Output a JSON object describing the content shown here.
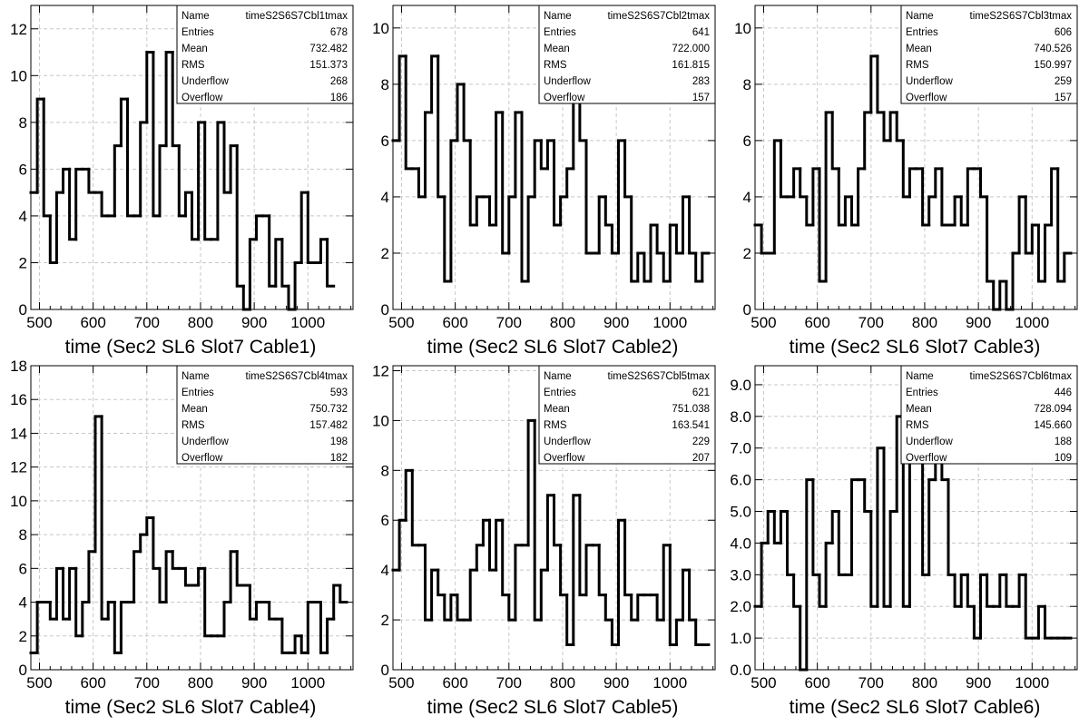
{
  "chart_data": [
    {
      "type": "bar",
      "title": "",
      "xlabel": "time (Sec2 SL6 Slot7 Cable1)",
      "ylabel": "",
      "xlim": [
        484,
        1084
      ],
      "ylim": [
        0,
        13
      ],
      "xticks": [
        500,
        600,
        700,
        800,
        900,
        1000
      ],
      "yticks": [
        0,
        2,
        4,
        6,
        8,
        10,
        12
      ],
      "ytick_format": "int",
      "grid": true,
      "bin_width": 12,
      "values": [
        5,
        9,
        4,
        2,
        5,
        6,
        3,
        6,
        6,
        5,
        5,
        4,
        4,
        7,
        9,
        4,
        4,
        8,
        11,
        4,
        7,
        11,
        7,
        4,
        5,
        3,
        8,
        3,
        3,
        8,
        5,
        7,
        1,
        0,
        3,
        4,
        4,
        1,
        3,
        1,
        0,
        2,
        5,
        2,
        2,
        3,
        1
      ],
      "stats": {
        "Name": "timeS2S6S7Cbl1tmax",
        "Entries": "678",
        "Mean": "732.482",
        "RMS": "151.373",
        "Underflow": "268",
        "Overflow": "186"
      }
    },
    {
      "type": "bar",
      "title": "",
      "xlabel": "time (Sec2 SL6 Slot7 Cable2)",
      "ylabel": "",
      "xlim": [
        484,
        1084
      ],
      "ylim": [
        0,
        10.8
      ],
      "xticks": [
        500,
        600,
        700,
        800,
        900,
        1000
      ],
      "yticks": [
        0,
        2,
        4,
        6,
        8,
        10
      ],
      "ytick_format": "int",
      "grid": true,
      "bin_width": 12,
      "values": [
        6,
        9,
        5,
        5,
        4,
        7,
        9,
        4,
        1,
        6,
        8,
        6,
        3,
        4,
        4,
        3,
        7,
        2,
        4,
        7,
        1,
        4,
        6,
        5,
        6,
        3,
        4,
        5,
        8,
        6,
        2,
        2,
        4,
        3,
        2,
        6,
        4,
        1,
        2,
        1,
        3,
        2,
        1,
        3,
        2,
        4,
        2,
        1,
        2
      ],
      "stats": {
        "Name": "timeS2S6S7Cbl2tmax",
        "Entries": "641",
        "Mean": "722.000",
        "RMS": "161.815",
        "Underflow": "283",
        "Overflow": "157"
      }
    },
    {
      "type": "bar",
      "title": "",
      "xlabel": "time (Sec2 SL6 Slot7 Cable3)",
      "ylabel": "",
      "xlim": [
        484,
        1084
      ],
      "ylim": [
        0,
        10.8
      ],
      "xticks": [
        500,
        600,
        700,
        800,
        900,
        1000
      ],
      "yticks": [
        0,
        2,
        4,
        6,
        8,
        10
      ],
      "ytick_format": "int",
      "grid": true,
      "bin_width": 12,
      "values": [
        3,
        2,
        2,
        6,
        4,
        4,
        5,
        4,
        3,
        5,
        1,
        7,
        5,
        3,
        4,
        3,
        5,
        7,
        9,
        7,
        6,
        7,
        6,
        4,
        5,
        5,
        3,
        4,
        5,
        3,
        3,
        4,
        3,
        5,
        5,
        4,
        1,
        0,
        1,
        0,
        2,
        4,
        2,
        3,
        1,
        3,
        5,
        1,
        2
      ],
      "stats": {
        "Name": "timeS2S6S7Cbl3tmax",
        "Entries": "606",
        "Mean": "740.526",
        "RMS": "150.997",
        "Underflow": "259",
        "Overflow": "157"
      }
    },
    {
      "type": "bar",
      "title": "",
      "xlabel": "time (Sec2 SL6 Slot7 Cable4)",
      "ylabel": "",
      "xlim": [
        484,
        1084
      ],
      "ylim": [
        0,
        18
      ],
      "xticks": [
        500,
        600,
        700,
        800,
        900,
        1000
      ],
      "yticks": [
        0,
        2,
        4,
        6,
        8,
        10,
        12,
        14,
        16,
        18
      ],
      "ytick_format": "int",
      "grid": true,
      "bin_width": 12,
      "values": [
        1,
        4,
        4,
        3,
        6,
        3,
        6,
        2,
        4,
        7,
        15,
        3,
        4,
        1,
        4,
        4,
        7,
        8,
        9,
        6,
        4,
        7,
        6,
        6,
        5,
        5,
        6,
        2,
        2,
        2,
        4,
        7,
        5,
        5,
        3,
        4,
        4,
        3,
        3,
        1,
        1,
        2,
        1,
        4,
        4,
        1,
        3,
        5,
        4
      ],
      "stats": {
        "Name": "timeS2S6S7Cbl4tmax",
        "Entries": "593",
        "Mean": "750.732",
        "RMS": "157.482",
        "Underflow": "198",
        "Overflow": "182"
      }
    },
    {
      "type": "bar",
      "title": "",
      "xlabel": "time (Sec2 SL6 Slot7 Cable5)",
      "ylabel": "",
      "xlim": [
        484,
        1084
      ],
      "ylim": [
        0,
        12.2
      ],
      "xticks": [
        500,
        600,
        700,
        800,
        900,
        1000
      ],
      "yticks": [
        0,
        2,
        4,
        6,
        8,
        10,
        12
      ],
      "ytick_format": "int",
      "grid": true,
      "bin_width": 12,
      "values": [
        4,
        6,
        8,
        5,
        5,
        2,
        4,
        3,
        2,
        3,
        2,
        2,
        4,
        5,
        6,
        4,
        6,
        3,
        2,
        5,
        5,
        10,
        2,
        4,
        7,
        5,
        3,
        1,
        7,
        3,
        5,
        5,
        3,
        2,
        1,
        6,
        3,
        2,
        3,
        3,
        3,
        2,
        5,
        1,
        2,
        4,
        2,
        1,
        1
      ],
      "stats": {
        "Name": "timeS2S6S7Cbl5tmax",
        "Entries": "621",
        "Mean": "751.038",
        "RMS": "163.541",
        "Underflow": "229",
        "Overflow": "207"
      }
    },
    {
      "type": "bar",
      "title": "",
      "xlabel": "time (Sec2 SL6 Slot7 Cable6)",
      "ylabel": "",
      "xlim": [
        484,
        1084
      ],
      "ylim": [
        0,
        9.6
      ],
      "xticks": [
        500,
        600,
        700,
        800,
        900,
        1000
      ],
      "yticks": [
        0,
        1,
        2,
        3,
        4,
        5,
        6,
        7,
        8,
        9
      ],
      "ytick_format": "fixed1",
      "grid": true,
      "bin_width": 12,
      "values": [
        2,
        4,
        5,
        4,
        5,
        3,
        2,
        0,
        6,
        3,
        2,
        4,
        5,
        3,
        3,
        6,
        6,
        5,
        2,
        7,
        2,
        5,
        8,
        2,
        7,
        8,
        3,
        6,
        7,
        6,
        3,
        2,
        3,
        2,
        1,
        3,
        2,
        2,
        3,
        2,
        2,
        3,
        1,
        1,
        2,
        1,
        1,
        1,
        1
      ],
      "stats": {
        "Name": "timeS2S6S7Cbl6tmax",
        "Entries": "446",
        "Mean": "728.094",
        "RMS": "145.660",
        "Underflow": "188",
        "Overflow": "109"
      }
    }
  ]
}
